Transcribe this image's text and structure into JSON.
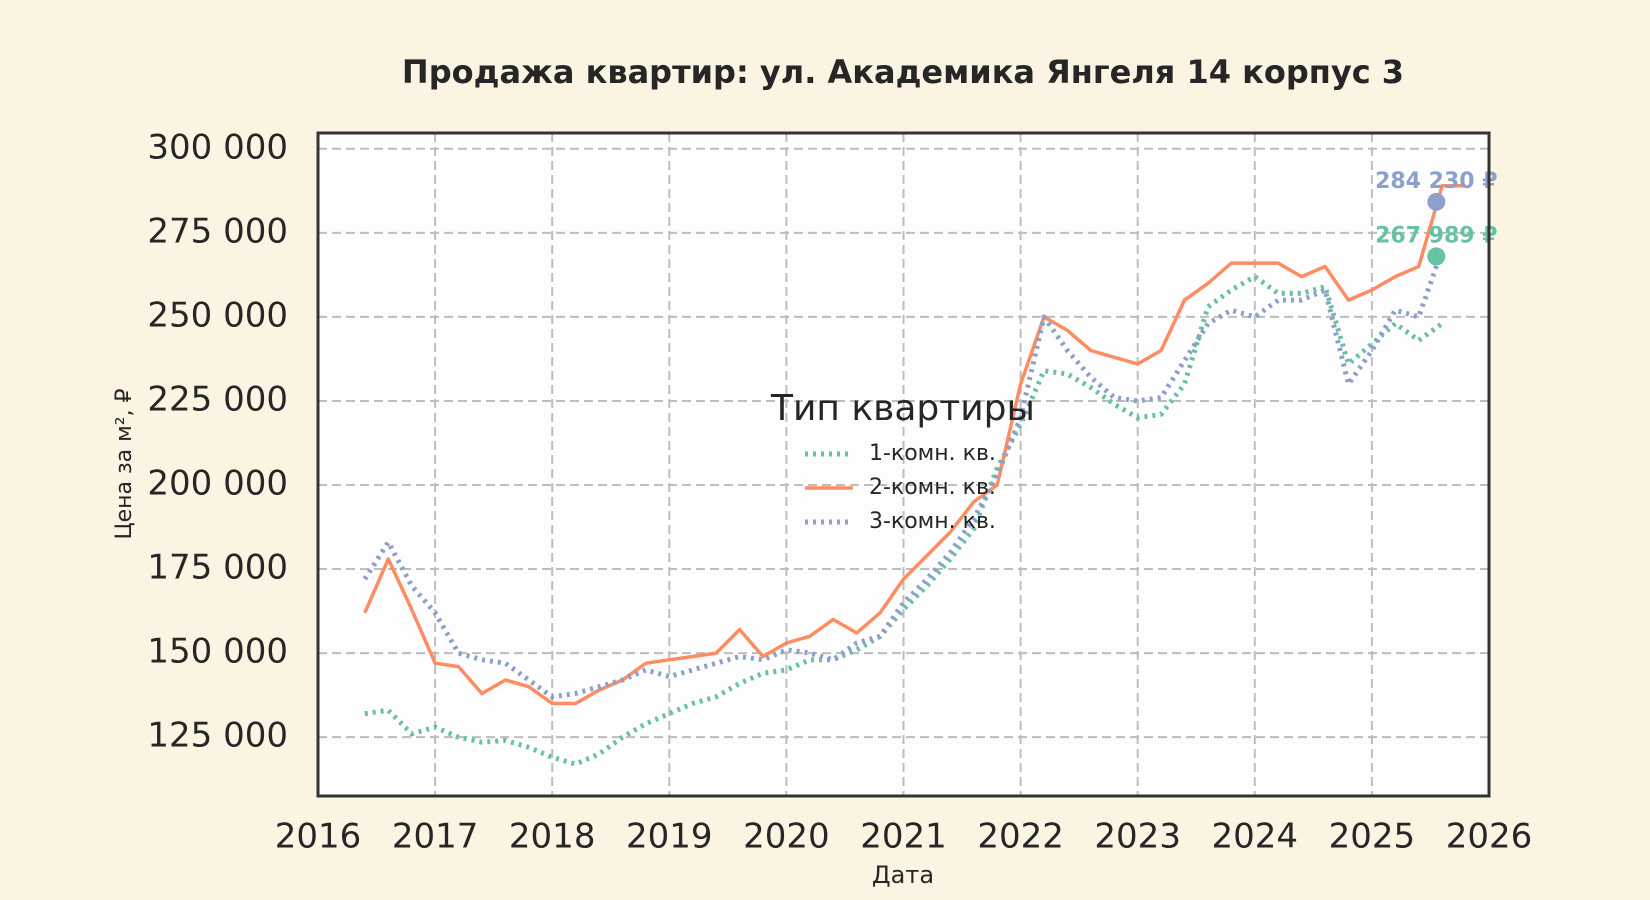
{
  "chart_data": {
    "type": "line",
    "title": "Продажа квартир: ул. Академика Янгеля 14 корпус 3",
    "x_label": "Дата",
    "y_label": "Цена за м², ₽",
    "legend_title": "Тип квартиры",
    "legend": "center",
    "grid": true,
    "xlim": [
      2016,
      2026
    ],
    "xticks": [
      2016,
      2017,
      2018,
      2019,
      2020,
      2021,
      2022,
      2023,
      2024,
      2025,
      2026
    ],
    "ylim": [
      107500,
      304700
    ],
    "yticks": [
      {
        "value": 125000,
        "label": "125 000"
      },
      {
        "value": 150000,
        "label": "150 000"
      },
      {
        "value": 175000,
        "label": "175 000"
      },
      {
        "value": 200000,
        "label": "200 000"
      },
      {
        "value": 225000,
        "label": "225 000"
      },
      {
        "value": 250000,
        "label": "250 000"
      },
      {
        "value": 275000,
        "label": "275 000"
      },
      {
        "value": 300000,
        "label": "300 000"
      }
    ],
    "x": [
      2016.4,
      2016.6,
      2016.8,
      2017.0,
      2017.2,
      2017.4,
      2017.6,
      2017.8,
      2018.0,
      2018.2,
      2018.4,
      2018.6,
      2018.8,
      2019.0,
      2019.2,
      2019.4,
      2019.6,
      2019.8,
      2020.0,
      2020.2,
      2020.4,
      2020.6,
      2020.8,
      2021.0,
      2021.2,
      2021.4,
      2021.6,
      2021.8,
      2022.0,
      2022.2,
      2022.4,
      2022.6,
      2022.8,
      2023.0,
      2023.2,
      2023.4,
      2023.6,
      2023.8,
      2024.0,
      2024.2,
      2024.4,
      2024.6,
      2024.8,
      2025.0,
      2025.2,
      2025.4,
      2025.6,
      2025.8
    ],
    "series": [
      {
        "name": "1-комн. кв.",
        "color": "#66c2a5",
        "dash": "dotted",
        "values": [
          132000,
          133000,
          126000,
          128000,
          125000,
          123500,
          124000,
          122000,
          119000,
          117000,
          120000,
          125000,
          129000,
          132000,
          135000,
          137000,
          141000,
          144000,
          145000,
          148000,
          148000,
          151000,
          155000,
          163000,
          170000,
          178000,
          187000,
          205000,
          218000,
          234000,
          233000,
          229000,
          224000,
          220000,
          221000,
          230000,
          253000,
          258000,
          262000,
          257000,
          257000,
          259000,
          236000,
          242000,
          248000,
          243000,
          248000,
          null
        ]
      },
      {
        "name": "2-комн. кв.",
        "color": "#fc8d62",
        "dash": "solid",
        "values": [
          162000,
          178000,
          163000,
          147000,
          146000,
          138000,
          142000,
          140000,
          135000,
          135000,
          139000,
          142000,
          147000,
          148000,
          149000,
          150000,
          157000,
          149000,
          153000,
          155000,
          160000,
          156000,
          162000,
          172000,
          179000,
          186000,
          195000,
          200000,
          230000,
          250000,
          246000,
          240000,
          238000,
          236000,
          240000,
          255000,
          260000,
          266000,
          266000,
          266000,
          262000,
          265000,
          255000,
          258000,
          262000,
          265000,
          289000,
          289000
        ]
      },
      {
        "name": "3-комн. кв.",
        "color": "#8da0cb",
        "dash": "dotted",
        "values": [
          172000,
          183000,
          170000,
          162000,
          150000,
          148000,
          147000,
          142000,
          137000,
          138000,
          140000,
          142000,
          145000,
          143000,
          145000,
          147000,
          149000,
          148000,
          151000,
          150000,
          148000,
          153000,
          155000,
          165000,
          172000,
          180000,
          190000,
          203000,
          220000,
          250000,
          240000,
          232000,
          226000,
          225000,
          226000,
          237000,
          248000,
          252000,
          250000,
          255000,
          255000,
          258000,
          230000,
          240000,
          252000,
          250000,
          270000,
          null
        ]
      }
    ],
    "annotations": [
      {
        "x": 2025.55,
        "y": 284230,
        "label": "284 230 ₽",
        "color": "#8da0cb"
      },
      {
        "x": 2025.55,
        "y": 267989,
        "label": "267 989 ₽",
        "color": "#66c2a5"
      }
    ]
  }
}
